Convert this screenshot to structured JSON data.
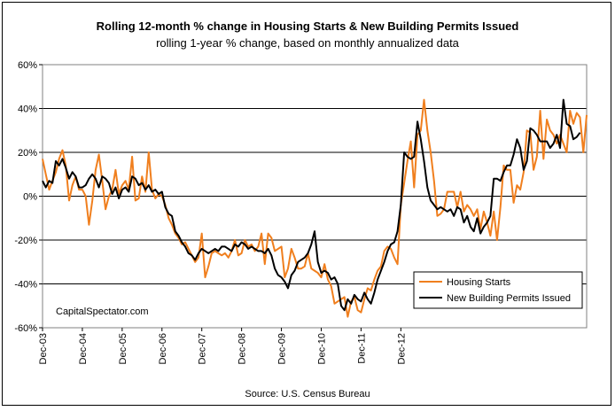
{
  "chart_data": {
    "type": "line",
    "title": "Rolling 12-month %  change in Housing Starts & New Building Permits Issued",
    "subtitle": "rolling 1-year % change, based on monthly annualized data",
    "xlabel": "",
    "ylabel": "",
    "source": "Source: U.S. Census Bureau",
    "watermark": "CapitalSpectator.com",
    "x_start": "2003-12",
    "x_end": "2012-12",
    "x_ticks": [
      "Dec-03",
      "Dec-04",
      "Dec-05",
      "Dec-06",
      "Dec-07",
      "Dec-08",
      "Dec-09",
      "Dec-10",
      "Dec-11",
      "Dec-12"
    ],
    "y_ticks": [
      "60%",
      "40%",
      "20%",
      "0%",
      "-20%",
      "-40%",
      "-60%"
    ],
    "ylim": [
      -60,
      60
    ],
    "grid": "horizontal",
    "legend_position": "bottom-right",
    "colors": {
      "starts": "#f07f1e",
      "permits": "#000000"
    },
    "series": [
      {
        "name": "Housing Starts",
        "values": [
          17,
          10,
          3,
          7,
          11,
          17,
          21,
          14,
          -2,
          5,
          9,
          3,
          3,
          0,
          -13,
          -2,
          12,
          19,
          7,
          -6,
          0,
          3,
          12,
          1,
          5,
          7,
          3,
          18,
          -2,
          -1,
          9,
          2,
          20,
          3,
          -1,
          1,
          0,
          -4,
          -10,
          -13,
          -17,
          -19,
          -22,
          -21,
          -24,
          -27,
          -30,
          -28,
          -17,
          -37,
          -32,
          -26,
          -25,
          -26,
          -27,
          -26,
          -28,
          -25,
          -20,
          -27,
          -26,
          -20,
          -23,
          -22,
          -25,
          -23,
          -17,
          -31,
          -17,
          -19,
          -25,
          -24,
          -23,
          -37,
          -33,
          -24,
          -28,
          -33,
          -33,
          -32,
          -26,
          -33,
          -34,
          -35,
          -37,
          -31,
          -38,
          -41,
          -49,
          -48,
          -47,
          -46,
          -55,
          -48,
          -46,
          -52,
          -53,
          -47,
          -42,
          -43,
          -38,
          -34,
          -32,
          -25,
          -23,
          -24,
          -28,
          -31,
          -4,
          6,
          16,
          25,
          4,
          28,
          30,
          44,
          30,
          20,
          7,
          -9,
          -8,
          -6,
          2,
          2,
          2,
          -5,
          2,
          -7,
          -4,
          -6,
          -9,
          -6,
          -15,
          -7,
          -12,
          -18,
          -7,
          -20,
          -5,
          14,
          12,
          12,
          -3,
          5,
          3,
          11,
          30,
          29,
          12,
          18,
          39,
          17,
          35,
          30,
          28,
          24,
          28,
          24,
          20,
          39,
          33,
          38,
          36,
          20,
          37
        ]
      },
      {
        "name": "New Building Permits Issued",
        "values": [
          7,
          4,
          7,
          6,
          16,
          14,
          17,
          13,
          8,
          11,
          9,
          4,
          4,
          5,
          8,
          10,
          8,
          4,
          9,
          8,
          6,
          1,
          4,
          -1,
          3,
          4,
          2,
          9,
          8,
          5,
          6,
          3,
          5,
          2,
          3,
          1,
          2,
          -5,
          -8,
          -9,
          -16,
          -18,
          -21,
          -23,
          -26,
          -27,
          -29,
          -26,
          -24,
          -25,
          -26,
          -25,
          -24,
          -25,
          -23,
          -23,
          -24,
          -25,
          -22,
          -23,
          -21,
          -22,
          -24,
          -23,
          -24,
          -25,
          -25,
          -26,
          -24,
          -27,
          -33,
          -36,
          -37,
          -39,
          -42,
          -36,
          -34,
          -30,
          -29,
          -28,
          -26,
          -22,
          -16,
          -30,
          -35,
          -34,
          -35,
          -38,
          -37,
          -40,
          -50,
          -52,
          -47,
          -49,
          -45,
          -47,
          -48,
          -44,
          -47,
          -49,
          -44,
          -38,
          -34,
          -30,
          -25,
          -22,
          -21,
          -16,
          -4,
          20,
          18,
          17,
          18,
          34,
          26,
          16,
          4,
          -2,
          -4,
          -6,
          -5,
          -6,
          -7,
          -6,
          -9,
          -5,
          -6,
          -12,
          -9,
          -14,
          -16,
          -10,
          -17,
          -14,
          -12,
          -9,
          8,
          8,
          7,
          11,
          14,
          14,
          19,
          26,
          22,
          12,
          16,
          31,
          30,
          28,
          25,
          25,
          25,
          22,
          24,
          28,
          22,
          44,
          33,
          32,
          26,
          27,
          29
        ]
      }
    ]
  }
}
